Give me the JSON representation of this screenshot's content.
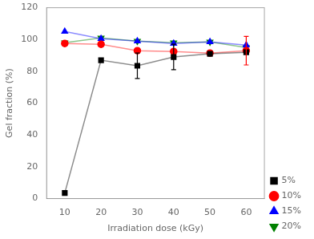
{
  "chart_data": {
    "type": "line",
    "xlabel": "Irradiation dose (kGy)",
    "ylabel": "Gel fraction (%)",
    "x": [
      10,
      20,
      30,
      40,
      50,
      60
    ],
    "series": [
      {
        "name": "5%",
        "color": "#000000",
        "marker": "square",
        "values": [
          3.5,
          87,
          83.5,
          89,
          91,
          92
        ],
        "yerr": [
          0,
          0,
          8,
          8,
          0,
          0
        ]
      },
      {
        "name": "10%",
        "color": "#ff0000",
        "marker": "circle",
        "values": [
          97.5,
          97,
          93,
          92.5,
          91.5,
          93
        ],
        "yerr": [
          0,
          0,
          0,
          0,
          0,
          9
        ]
      },
      {
        "name": "15%",
        "color": "#0000ff",
        "marker": "triangle-up",
        "values": [
          105,
          100.5,
          99,
          97.5,
          98.5,
          96.5
        ],
        "yerr": [
          0,
          0,
          0,
          0,
          0,
          0
        ]
      },
      {
        "name": "20%",
        "color": "#008000",
        "marker": "triangle-down",
        "values": [
          98,
          101,
          99,
          98,
          98.5,
          95
        ],
        "yerr": [
          0,
          0,
          0,
          0,
          0,
          0
        ]
      }
    ],
    "xlim": [
      5,
      65
    ],
    "xticks": [
      10,
      20,
      30,
      40,
      50,
      60
    ],
    "ylim": [
      0,
      120
    ],
    "yticks": [
      0,
      20,
      40,
      60,
      80,
      100,
      120
    ],
    "grid": false,
    "legend": "lower right"
  }
}
